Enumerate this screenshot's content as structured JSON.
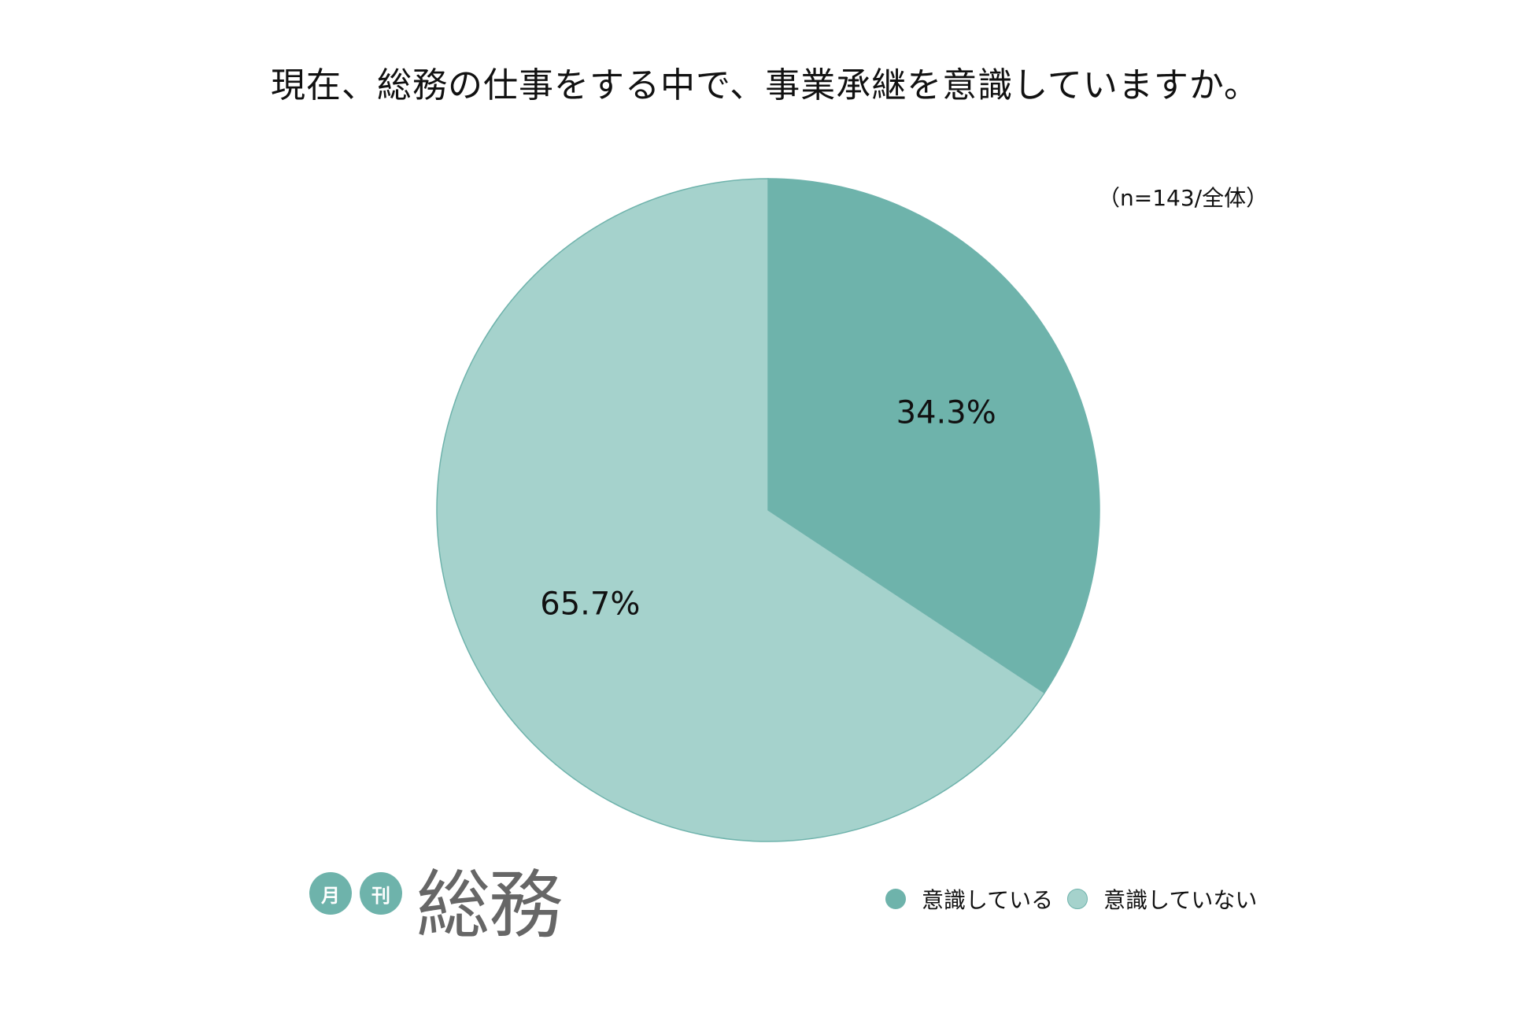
{
  "title": "現在、総務の仕事をする中で、事業承継を意識していますか。",
  "sample_note": "（n=143/全体）",
  "colors": {
    "series_1": "#6EB3AB",
    "series_2": "#A5D2CC",
    "edge": "#6FB3AC",
    "logo_text": "#666666"
  },
  "logo": {
    "badge_1": "月",
    "badge_2": "刊",
    "main": "総務"
  },
  "chart_data": {
    "type": "pie",
    "title": "現在、総務の仕事をする中で、事業承継を意識していますか。",
    "note": "（n=143/全体）",
    "slices": [
      {
        "label": "意識している",
        "value": 34.3,
        "display": "34.3%"
      },
      {
        "label": "意識していない",
        "value": 65.7,
        "display": "65.7%"
      }
    ],
    "legend": [
      "意識している",
      "意識していない"
    ],
    "legend_position": "bottom-right"
  }
}
